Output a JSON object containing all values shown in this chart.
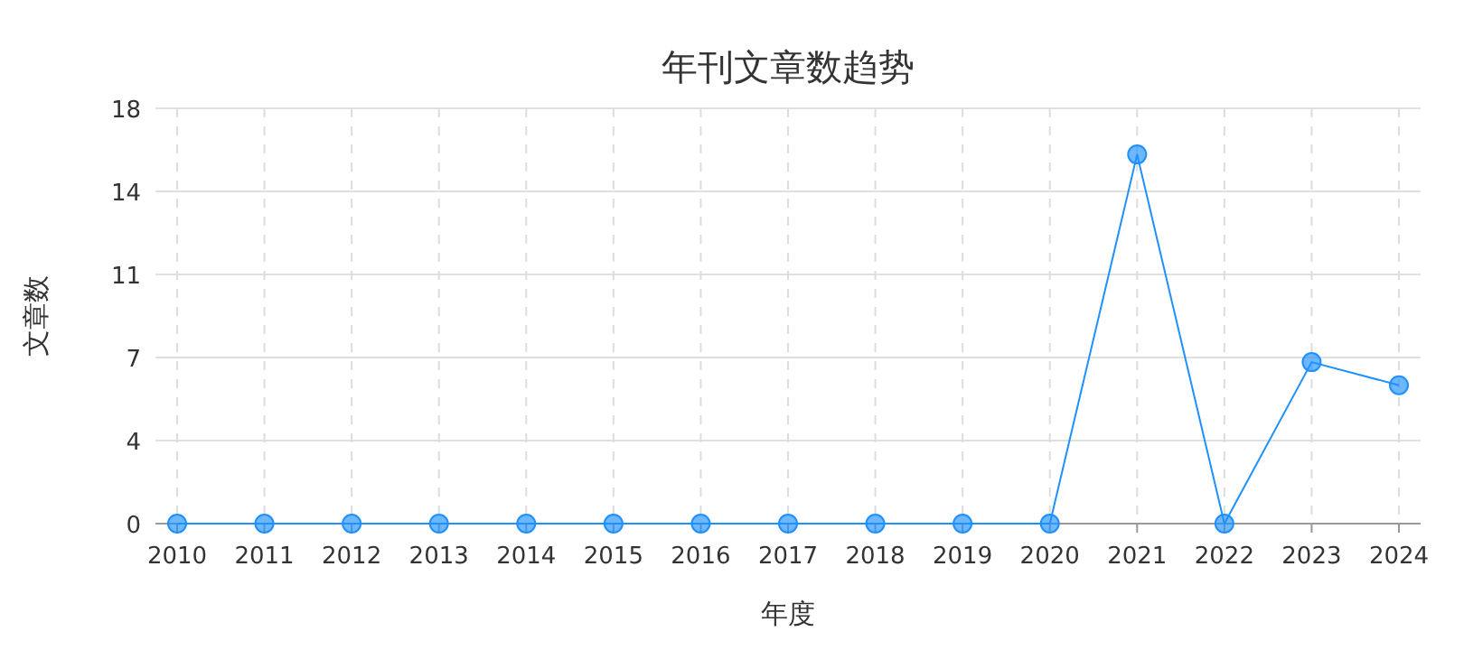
{
  "chart_data": {
    "type": "line",
    "title": "年刊文章数趋势",
    "xlabel": "年度",
    "ylabel": "文章数",
    "categories": [
      "2010",
      "2011",
      "2012",
      "2013",
      "2014",
      "2015",
      "2016",
      "2017",
      "2018",
      "2019",
      "2020",
      "2021",
      "2022",
      "2023",
      "2024"
    ],
    "series": [
      {
        "color": "#1e90ff",
        "values": [
          0,
          0,
          0,
          0,
          0,
          0,
          0,
          0,
          0,
          0,
          0,
          16,
          0,
          7,
          6
        ]
      }
    ],
    "ylim": [
      0,
      18
    ],
    "yticks": [
      0,
      {
        "value": 3.6,
        "label": "4"
      },
      {
        "value": 7.2,
        "label": "7"
      },
      {
        "value": 10.8,
        "label": "11"
      },
      {
        "value": 14.4,
        "label": "14"
      },
      18
    ],
    "grid": true,
    "marker": "circle"
  }
}
